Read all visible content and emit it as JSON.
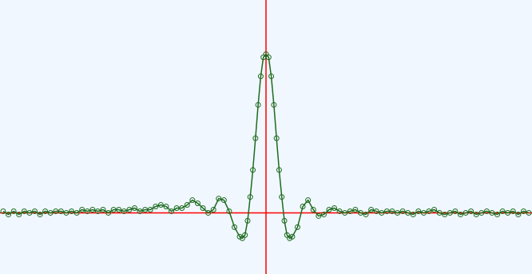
{
  "chart_data": {
    "type": "line",
    "title": "",
    "xlabel": "",
    "ylabel": "",
    "xlim": [
      -100,
      100
    ],
    "ylim": [
      -0.35,
      1.2
    ],
    "grid": false,
    "legend": "none",
    "x": [
      -100,
      -98,
      -96,
      -94,
      -92,
      -90,
      -88,
      -86,
      -84,
      -82,
      -80,
      -78,
      -76,
      -74,
      -72,
      -70,
      -68,
      -66,
      -64,
      -62,
      -60,
      -58,
      -56,
      -54,
      -52,
      -50,
      -48,
      -46,
      -44,
      -42,
      -40,
      -38,
      -36,
      -34,
      -32,
      -30,
      -28,
      -26,
      -24,
      -22,
      -20,
      -18,
      -16,
      -14,
      -12,
      -10,
      -9,
      -8,
      -7,
      -6,
      -5,
      -4,
      -3,
      -2,
      -1,
      0,
      1,
      2,
      3,
      4,
      5,
      6,
      7,
      8,
      9,
      10,
      12,
      14,
      16,
      18,
      20,
      22,
      24,
      26,
      28,
      30,
      32,
      34,
      36,
      38,
      40,
      42,
      44,
      46,
      48,
      50,
      52,
      54,
      56,
      58,
      60,
      62,
      64,
      66,
      68,
      70,
      72,
      74,
      76,
      78,
      80,
      82,
      84,
      86,
      88,
      90,
      92,
      94,
      96,
      98,
      100
    ],
    "series": [
      {
        "values": [
          0.01,
          -0.01,
          0.01,
          -0.01,
          0.01,
          0.0,
          0.01,
          -0.01,
          0.01,
          0.0,
          0.01,
          0.01,
          0.0,
          0.01,
          0.0,
          0.02,
          0.01,
          0.02,
          0.01,
          0.02,
          0.0,
          0.02,
          0.02,
          0.01,
          0.02,
          0.03,
          0.01,
          0.02,
          0.02,
          0.04,
          0.05,
          0.04,
          0.01,
          0.03,
          0.03,
          0.05,
          0.08,
          0.06,
          0.03,
          0.0,
          0.02,
          0.09,
          0.08,
          0.01,
          -0.09,
          -0.15,
          -0.16,
          -0.14,
          -0.05,
          0.1,
          0.27,
          0.47,
          0.68,
          0.86,
          0.98,
          1.0,
          0.98,
          0.86,
          0.68,
          0.47,
          0.27,
          0.1,
          -0.05,
          -0.14,
          -0.16,
          -0.15,
          -0.09,
          0.04,
          0.08,
          0.02,
          -0.02,
          -0.01,
          0.02,
          0.03,
          0.01,
          0.0,
          0.01,
          0.02,
          0.0,
          -0.01,
          0.02,
          0.01,
          0.0,
          0.01,
          0.01,
          0.0,
          0.01,
          0.0,
          -0.01,
          0.01,
          0.0,
          0.01,
          0.02,
          0.0,
          -0.01,
          0.0,
          0.01,
          -0.01,
          0.0,
          0.01,
          -0.01,
          0.0,
          0.01,
          0.0,
          -0.01,
          0.01,
          0.0,
          0.01,
          -0.01,
          0.01,
          0.0
        ]
      }
    ],
    "colors": {
      "background": "#f0f7ff",
      "axes": "#ff0000",
      "series": "#1e6b1e"
    }
  }
}
